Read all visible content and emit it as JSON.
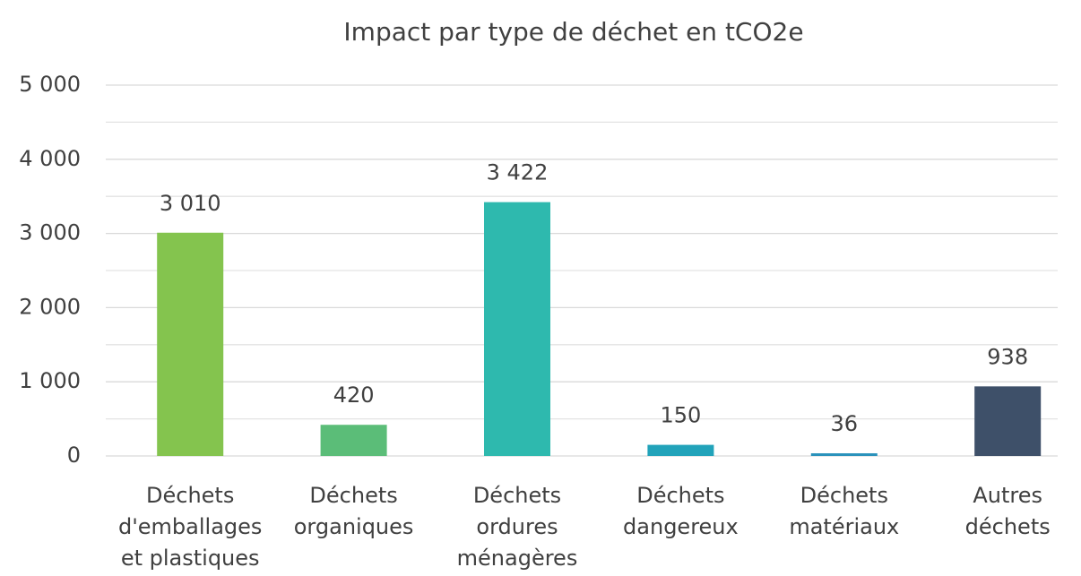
{
  "chart_data": {
    "type": "bar",
    "title": "Impact par type de déchet en tCO2e",
    "categories": [
      "Déchets d'emballages et plastiques",
      "Déchets organiques",
      "Déchets ordures ménagères",
      "Déchets dangereux",
      "Déchets matériaux",
      "Autres déchets"
    ],
    "values": [
      3010,
      420,
      3422,
      150,
      36,
      938
    ],
    "value_labels": [
      "3 010",
      "420",
      "3 422",
      "150",
      "36",
      "938"
    ],
    "colors": [
      "#84c44e",
      "#5bbd78",
      "#2eb9ae",
      "#22a3ba",
      "#2a92bb",
      "#3e5069"
    ],
    "ylim": [
      0,
      5000
    ],
    "yticks": [
      0,
      {
        "value": 1000,
        "label": "1 000"
      },
      {
        "value": 2000,
        "label": "2 000"
      },
      {
        "value": 3000,
        "label": "3 000"
      },
      {
        "value": 4000,
        "label": "4 000"
      },
      {
        "value": 5000,
        "label": "5 000"
      }
    ],
    "minor_yticks": [
      500,
      1500,
      2500,
      3500,
      4500
    ],
    "grid": true
  }
}
